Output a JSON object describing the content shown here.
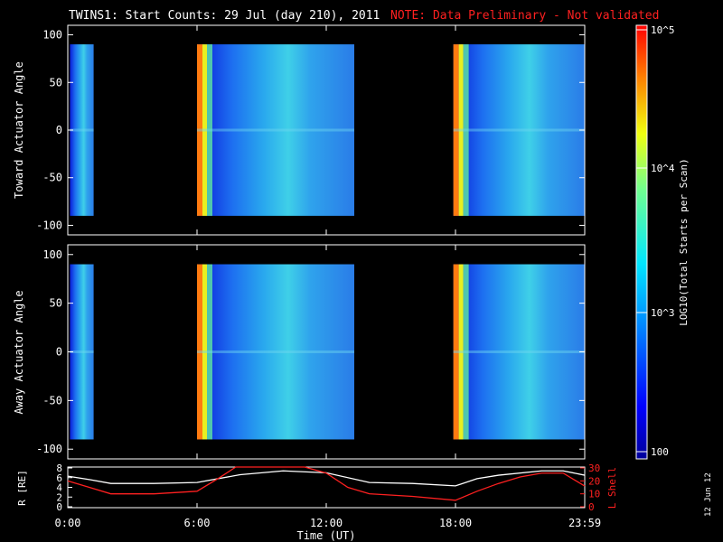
{
  "title": "TWINS1: Start Counts: 29 Jul (day 210), 2011",
  "note": "NOTE: Data Preliminary - Not validated",
  "datestamp": "12 Jun 12",
  "chart_data": [
    {
      "type": "heatmap",
      "ylabel": "Toward Actuator Angle",
      "ylim": [
        -110,
        110
      ],
      "yticks": [
        "100",
        "50",
        "0",
        "-50",
        "-100"
      ],
      "xlim_hours": [
        0,
        24
      ],
      "data_segments_hours": [
        [
          0.1,
          1.2
        ],
        [
          6.0,
          13.3
        ],
        [
          17.9,
          24.0
        ]
      ]
    },
    {
      "type": "heatmap",
      "ylabel": "Away Actuator Angle",
      "ylim": [
        -110,
        110
      ],
      "yticks": [
        "100",
        "50",
        "0",
        "-50",
        "-100"
      ],
      "xlim_hours": [
        0,
        24
      ],
      "data_segments_hours": [
        [
          0.1,
          1.2
        ],
        [
          6.0,
          13.3
        ],
        [
          17.9,
          24.0
        ]
      ]
    },
    {
      "type": "line",
      "ylabel_left": "R [RE]",
      "ylabel_right": "L Shell",
      "yticks_left": [
        "8",
        "6",
        "4",
        "2",
        "0"
      ],
      "yticks_right": [
        "30",
        "20",
        "10",
        "0"
      ],
      "xlabel": "Time (UT)",
      "xticks": [
        "0:00",
        "6:00",
        "12:00",
        "18:00",
        "23:59"
      ],
      "series_colors": {
        "R": "#ffffff",
        "L": "#ff2020"
      },
      "R": {
        "x": [
          0,
          1,
          2,
          4,
          6,
          8,
          10,
          12,
          14,
          16,
          18,
          19,
          20,
          22,
          23,
          24
        ],
        "y": [
          6.3,
          5.6,
          4.8,
          4.8,
          5.0,
          6.6,
          7.4,
          7.0,
          5.0,
          4.8,
          4.3,
          5.8,
          6.5,
          7.4,
          7.4,
          6.5
        ]
      },
      "L": {
        "x": [
          0,
          1,
          2,
          4,
          6,
          7,
          7.8,
          11,
          12,
          13,
          14,
          16,
          18,
          19,
          20,
          21,
          22,
          23,
          24
        ],
        "y": [
          20,
          15,
          10,
          10,
          12,
          22,
          34,
          34,
          26,
          15,
          10,
          8,
          5,
          12,
          18,
          23,
          26,
          26,
          16
        ]
      }
    },
    {
      "type": "colorbar",
      "label": "LOG10(Total Starts per Scan)",
      "ticks": [
        "10^5",
        "10^4",
        "10^3",
        "100"
      ]
    }
  ]
}
